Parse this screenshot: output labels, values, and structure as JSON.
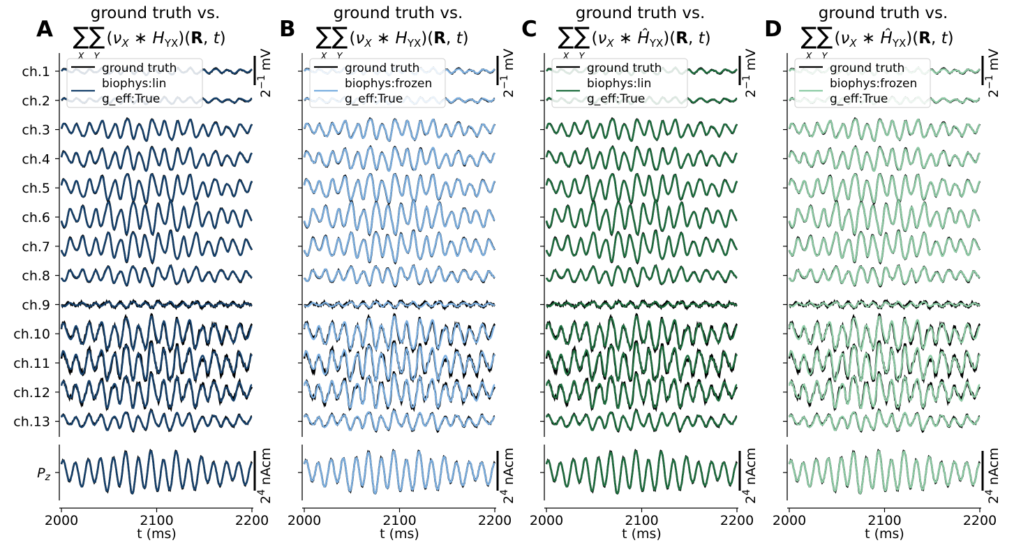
{
  "chart_data": {
    "type": "line",
    "x_unit_label": "t (ms)",
    "xlim": [
      2000,
      2200
    ],
    "x_ticks": [
      2000,
      2100,
      2200
    ],
    "channel_labels": [
      "ch.1",
      "ch.2",
      "ch.3",
      "ch.4",
      "ch.5",
      "ch.6",
      "ch.7",
      "ch.8",
      "ch.9",
      "ch.10",
      "ch.11",
      "ch.12",
      "ch.13"
    ],
    "dipole_label": "Pz",
    "scalebar_top": {
      "base": "2",
      "exp": "−1",
      "unit": " mV"
    },
    "scalebar_bottom": {
      "base": "2",
      "exp": "4",
      "unit": " nAcm"
    },
    "grid": false,
    "legend_placement": "top-left",
    "ground_truth_color": "#000000",
    "panels": [
      {
        "letter": "A",
        "title_line1": "ground truth vs.",
        "title_H": "H",
        "hat": false,
        "legend": [
          "ground truth",
          "biophys:lin",
          "g_eff:True"
        ],
        "color": "#15406b",
        "ground_truth_name": "ground truth",
        "series_name": "biophys:lin g_eff:True"
      },
      {
        "letter": "B",
        "title_line1": "ground truth vs.",
        "title_H": "H",
        "hat": false,
        "legend": [
          "ground truth",
          "biophys:frozen",
          "g_eff:True"
        ],
        "color": "#7aaee0",
        "ground_truth_name": "ground truth",
        "series_name": "biophys:frozen g_eff:True"
      },
      {
        "letter": "C",
        "title_line1": "ground truth vs.",
        "title_H": "Ĥ",
        "hat": true,
        "legend": [
          "ground truth",
          "biophys:lin",
          "g_eff:True"
        ],
        "color": "#1d6d3e",
        "ground_truth_name": "ground truth",
        "series_name": "biophys:lin g_eff:True"
      },
      {
        "letter": "D",
        "title_line1": "ground truth vs.",
        "title_H": "Ĥ",
        "hat": true,
        "legend": [
          "ground truth",
          "biophys:frozen",
          "g_eff:True"
        ],
        "color": "#8ccba4",
        "ground_truth_name": "ground truth",
        "series_name": "biophys:frozen g_eff:True"
      }
    ],
    "channel_amplitudes": [
      0.3,
      0.3,
      0.9,
      1.0,
      1.2,
      1.35,
      1.25,
      0.8,
      0.25,
      1.4,
      1.55,
      1.4,
      0.8
    ],
    "channel_noise": [
      0.04,
      0.04,
      0.05,
      0.05,
      0.05,
      0.05,
      0.05,
      0.06,
      0.12,
      0.2,
      0.25,
      0.2,
      0.08
    ],
    "dipole_amplitude": 1.0
  }
}
